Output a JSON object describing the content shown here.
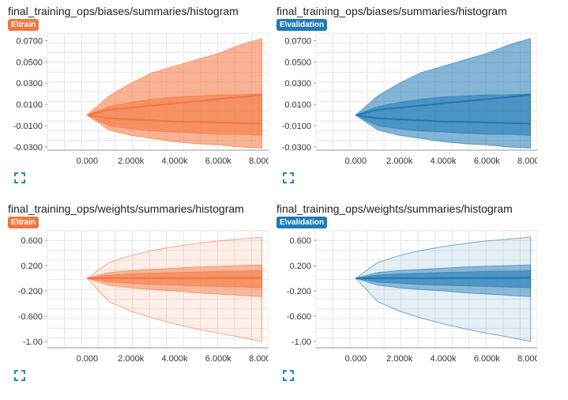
{
  "colors": {
    "train": "#f4753d",
    "validation": "#1f78b4",
    "train_badge": "#f4753d",
    "validation_badge": "#1e7ab8"
  },
  "cards": [
    {
      "title": "final_training_ops/biases/summaries/histogram",
      "run": "E\\train"
    },
    {
      "title": "final_training_ops/biases/summaries/histogram",
      "run": "E\\validation"
    },
    {
      "title": "final_training_ops/weights/summaries/histogram",
      "run": "E\\train"
    },
    {
      "title": "final_training_ops/weights/summaries/histogram",
      "run": "E\\validation"
    }
  ],
  "expand_icon": "fullscreen-expand-icon",
  "chart_data": [
    {
      "type": "area",
      "title": "final_training_ops/biases/summaries/histogram",
      "run": "E\\train",
      "x_ticks": [
        "0.000",
        "2.000k",
        "4.000k",
        "6.000k",
        "8.000k"
      ],
      "y_ticks": [
        "0.0700",
        "0.0500",
        "0.0300",
        "0.0100",
        "-0.0100",
        "-0.0300"
      ],
      "xlim": [
        0,
        8000
      ],
      "ylim": [
        -0.033,
        0.077
      ],
      "x": [
        0,
        1000,
        2000,
        3000,
        4000,
        5000,
        6000,
        7000,
        8000
      ],
      "bands": [
        {
          "upper": [
            0,
            0.018,
            0.03,
            0.04,
            0.046,
            0.052,
            0.058,
            0.066,
            0.072
          ],
          "lower": [
            0,
            -0.014,
            -0.019,
            -0.022,
            -0.025,
            -0.027,
            -0.028,
            -0.03,
            -0.031
          ]
        },
        {
          "upper": [
            0,
            0.008,
            0.012,
            0.015,
            0.017,
            0.018,
            0.019,
            0.019,
            0.02
          ],
          "lower": [
            0,
            -0.01,
            -0.013,
            -0.015,
            -0.016,
            -0.017,
            -0.018,
            -0.018,
            -0.019
          ]
        }
      ],
      "lines": [
        [
          0,
          0.005,
          0.007,
          0.009,
          0.011,
          0.013,
          0.015,
          0.017,
          0.019
        ],
        [
          0,
          -0.003,
          -0.004,
          -0.005,
          -0.006,
          -0.0065,
          -0.007,
          -0.0075,
          -0.008
        ]
      ]
    },
    {
      "type": "area",
      "title": "final_training_ops/biases/summaries/histogram",
      "run": "E\\validation",
      "x_ticks": [
        "0.000",
        "2.000k",
        "4.000k",
        "6.000k",
        "8.000k"
      ],
      "y_ticks": [
        "0.0700",
        "0.0500",
        "0.0300",
        "0.0100",
        "-0.0100",
        "-0.0300"
      ],
      "xlim": [
        0,
        8000
      ],
      "ylim": [
        -0.033,
        0.077
      ],
      "x": [
        0,
        1000,
        2000,
        3000,
        4000,
        5000,
        6000,
        7000,
        8000
      ],
      "bands": [
        {
          "upper": [
            0,
            0.018,
            0.03,
            0.04,
            0.046,
            0.052,
            0.058,
            0.066,
            0.072
          ],
          "lower": [
            0,
            -0.014,
            -0.019,
            -0.022,
            -0.025,
            -0.027,
            -0.028,
            -0.03,
            -0.031
          ]
        },
        {
          "upper": [
            0,
            0.008,
            0.012,
            0.015,
            0.017,
            0.018,
            0.019,
            0.019,
            0.02
          ],
          "lower": [
            0,
            -0.01,
            -0.013,
            -0.015,
            -0.016,
            -0.017,
            -0.018,
            -0.018,
            -0.019
          ]
        }
      ],
      "lines": [
        [
          0,
          0.005,
          0.007,
          0.009,
          0.011,
          0.013,
          0.015,
          0.017,
          0.019
        ],
        [
          0,
          -0.003,
          -0.004,
          -0.005,
          -0.006,
          -0.0065,
          -0.007,
          -0.0075,
          -0.008
        ]
      ]
    },
    {
      "type": "area",
      "title": "final_training_ops/weights/summaries/histogram",
      "run": "E\\train",
      "x_ticks": [
        "0.000",
        "2.000k",
        "4.000k",
        "6.000k",
        "8.000k"
      ],
      "y_ticks": [
        "0.600",
        "0.200",
        "-0.200",
        "-0.600",
        "-1.00"
      ],
      "xlim": [
        0,
        8000
      ],
      "ylim": [
        -1.1,
        0.75
      ],
      "x": [
        0,
        1000,
        2000,
        3000,
        4000,
        5000,
        6000,
        7000,
        8000
      ],
      "bands": [
        {
          "upper": [
            0,
            0.25,
            0.36,
            0.44,
            0.5,
            0.55,
            0.59,
            0.62,
            0.65
          ],
          "lower": [
            0,
            -0.37,
            -0.52,
            -0.63,
            -0.72,
            -0.8,
            -0.87,
            -0.93,
            -1.0
          ]
        },
        {
          "upper": [
            0,
            0.09,
            0.12,
            0.14,
            0.16,
            0.18,
            0.19,
            0.2,
            0.21
          ],
          "lower": [
            0,
            -0.11,
            -0.15,
            -0.18,
            -0.2,
            -0.23,
            -0.25,
            -0.27,
            -0.29
          ]
        },
        {
          "upper": [
            0,
            0.05,
            0.07,
            0.08,
            0.09,
            0.1,
            0.11,
            0.11,
            0.12
          ],
          "lower": [
            0,
            -0.06,
            -0.08,
            -0.1,
            -0.11,
            -0.12,
            -0.13,
            -0.14,
            -0.15
          ]
        }
      ],
      "lines": [
        [
          0,
          0.002,
          0.003,
          0.004,
          0.005,
          0.005,
          0.006,
          0.006,
          0.007
        ]
      ]
    },
    {
      "type": "area",
      "title": "final_training_ops/weights/summaries/histogram",
      "run": "E\\validation",
      "x_ticks": [
        "0.000",
        "2.000k",
        "4.000k",
        "6.000k",
        "8.000k"
      ],
      "y_ticks": [
        "0.600",
        "0.200",
        "-0.200",
        "-0.600",
        "-1.00"
      ],
      "xlim": [
        0,
        8000
      ],
      "ylim": [
        -1.1,
        0.75
      ],
      "x": [
        0,
        1000,
        2000,
        3000,
        4000,
        5000,
        6000,
        7000,
        8000
      ],
      "bands": [
        {
          "upper": [
            0,
            0.25,
            0.36,
            0.44,
            0.5,
            0.55,
            0.59,
            0.62,
            0.65
          ],
          "lower": [
            0,
            -0.37,
            -0.52,
            -0.63,
            -0.72,
            -0.8,
            -0.87,
            -0.93,
            -1.0
          ]
        },
        {
          "upper": [
            0,
            0.09,
            0.12,
            0.14,
            0.16,
            0.18,
            0.19,
            0.2,
            0.21
          ],
          "lower": [
            0,
            -0.11,
            -0.15,
            -0.18,
            -0.2,
            -0.23,
            -0.25,
            -0.27,
            -0.29
          ]
        },
        {
          "upper": [
            0,
            0.05,
            0.07,
            0.08,
            0.09,
            0.1,
            0.11,
            0.11,
            0.12
          ],
          "lower": [
            0,
            -0.06,
            -0.08,
            -0.1,
            -0.11,
            -0.12,
            -0.13,
            -0.14,
            -0.15
          ]
        }
      ],
      "lines": [
        [
          0,
          0.002,
          0.003,
          0.004,
          0.005,
          0.005,
          0.006,
          0.006,
          0.007
        ]
      ]
    }
  ]
}
